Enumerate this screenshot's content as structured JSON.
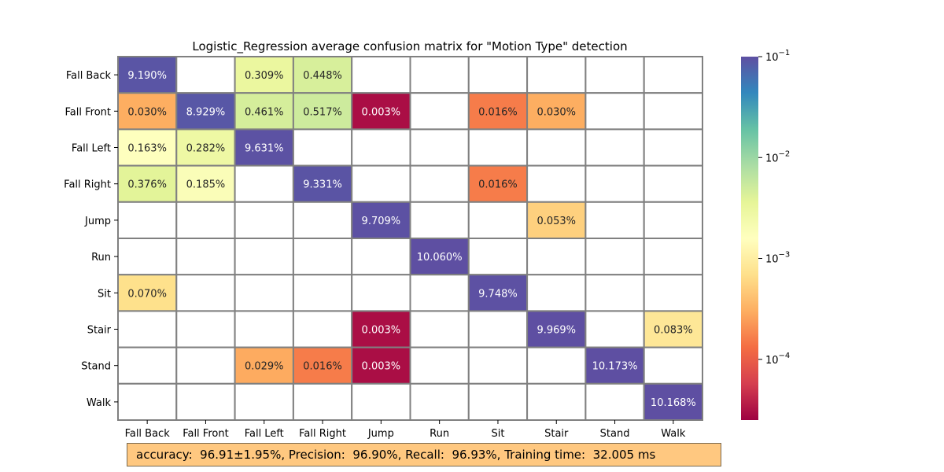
{
  "chart_data": {
    "type": "heatmap",
    "title": "Logistic_Regression average confusion matrix for \"Motion Type\" detection",
    "row_labels": [
      "Fall Back",
      "Fall Front",
      "Fall Left",
      "Fall Right",
      "Jump",
      "Run",
      "Sit",
      "Stair",
      "Stand",
      "Walk"
    ],
    "col_labels": [
      "Fall Back",
      "Fall Front",
      "Fall Left",
      "Fall Right",
      "Jump",
      "Run",
      "Sit",
      "Stair",
      "Stand",
      "Walk"
    ],
    "values": [
      [
        9.19,
        null,
        0.309,
        0.448,
        null,
        null,
        null,
        null,
        null,
        null
      ],
      [
        0.03,
        8.929,
        0.461,
        0.517,
        0.003,
        null,
        0.016,
        0.03,
        null,
        null
      ],
      [
        0.163,
        0.282,
        9.631,
        null,
        null,
        null,
        null,
        null,
        null,
        null
      ],
      [
        0.376,
        0.185,
        null,
        9.331,
        null,
        null,
        0.016,
        null,
        null,
        null
      ],
      [
        null,
        null,
        null,
        null,
        9.709,
        null,
        null,
        0.053,
        null,
        null
      ],
      [
        null,
        null,
        null,
        null,
        null,
        10.06,
        null,
        null,
        null,
        null
      ],
      [
        0.07,
        null,
        null,
        null,
        null,
        null,
        9.748,
        null,
        null,
        null
      ],
      [
        null,
        null,
        null,
        null,
        0.003,
        null,
        null,
        9.969,
        null,
        0.083
      ],
      [
        null,
        null,
        0.029,
        0.016,
        0.003,
        null,
        null,
        null,
        10.173,
        null
      ],
      [
        null,
        null,
        null,
        null,
        null,
        null,
        null,
        null,
        null,
        10.168
      ]
    ],
    "value_format": "%",
    "colorbar": {
      "scale": "log",
      "range": [
        2.5e-05,
        0.1
      ],
      "colormap": "Spectral",
      "tick_labels": [
        "10^-1",
        "10^-2",
        "10^-3",
        "10^-4"
      ],
      "tick_values": [
        0.1,
        0.01,
        0.001,
        0.0001
      ]
    },
    "colors": {
      "grid_line": "#808080",
      "empty_cell": "#ffffff"
    }
  },
  "summary": "accuracy:  96.91±1.95%, Precision:  96.90%, Recall:  96.93%, Training time:  32.005 ms"
}
